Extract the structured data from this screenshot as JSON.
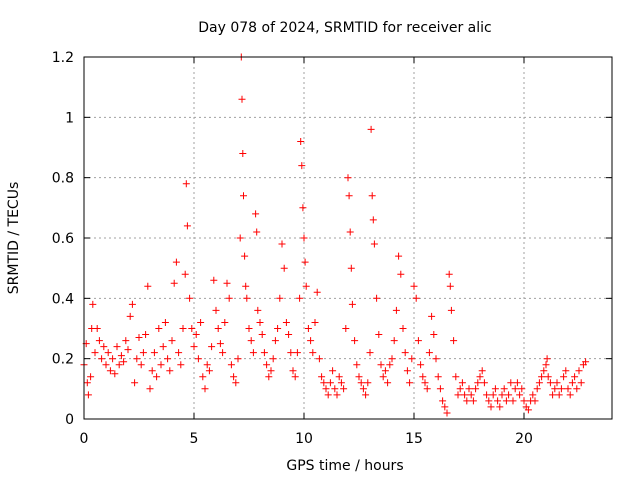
{
  "chart_data": {
    "type": "scatter",
    "title": "Day 078 of 2024, SRMTID for receiver alic",
    "xlabel": "GPS time / hours",
    "ylabel": "SRMTID / TECUs",
    "xlim": [
      0,
      24
    ],
    "ylim": [
      0,
      1.2
    ],
    "x_ticks": [
      0,
      5,
      10,
      15,
      20
    ],
    "x_tick_labels": [
      "0",
      "5",
      "10",
      "15",
      "20"
    ],
    "y_ticks": [
      0,
      0.2,
      0.4,
      0.6,
      0.8,
      1,
      1.2
    ],
    "y_tick_labels": [
      "0",
      "0.2",
      "0.4",
      "0.6",
      "0.8",
      "1",
      "1.2"
    ],
    "grid": true,
    "marker": "+",
    "color": "#ff0000",
    "series": [
      {
        "name": "SRMTID",
        "points": [
          [
            0.0,
            0.18
          ],
          [
            0.1,
            0.25
          ],
          [
            0.15,
            0.12
          ],
          [
            0.2,
            0.08
          ],
          [
            0.3,
            0.14
          ],
          [
            0.35,
            0.3
          ],
          [
            0.4,
            0.38
          ],
          [
            0.5,
            0.22
          ],
          [
            0.6,
            0.3
          ],
          [
            0.7,
            0.26
          ],
          [
            0.8,
            0.2
          ],
          [
            0.9,
            0.24
          ],
          [
            1.0,
            0.18
          ],
          [
            1.1,
            0.22
          ],
          [
            1.2,
            0.16
          ],
          [
            1.3,
            0.2
          ],
          [
            1.4,
            0.15
          ],
          [
            1.5,
            0.24
          ],
          [
            1.6,
            0.18
          ],
          [
            1.7,
            0.21
          ],
          [
            1.8,
            0.19
          ],
          [
            1.9,
            0.26
          ],
          [
            2.0,
            0.23
          ],
          [
            2.1,
            0.34
          ],
          [
            2.2,
            0.38
          ],
          [
            2.3,
            0.12
          ],
          [
            2.4,
            0.2
          ],
          [
            2.5,
            0.27
          ],
          [
            2.6,
            0.18
          ],
          [
            2.7,
            0.22
          ],
          [
            2.8,
            0.28
          ],
          [
            2.9,
            0.44
          ],
          [
            3.0,
            0.1
          ],
          [
            3.1,
            0.16
          ],
          [
            3.2,
            0.22
          ],
          [
            3.3,
            0.14
          ],
          [
            3.4,
            0.3
          ],
          [
            3.5,
            0.18
          ],
          [
            3.6,
            0.24
          ],
          [
            3.7,
            0.32
          ],
          [
            3.8,
            0.2
          ],
          [
            3.9,
            0.16
          ],
          [
            4.0,
            0.26
          ],
          [
            4.1,
            0.45
          ],
          [
            4.2,
            0.52
          ],
          [
            4.3,
            0.22
          ],
          [
            4.4,
            0.18
          ],
          [
            4.5,
            0.3
          ],
          [
            4.6,
            0.48
          ],
          [
            4.65,
            0.78
          ],
          [
            4.7,
            0.64
          ],
          [
            4.8,
            0.4
          ],
          [
            4.9,
            0.3
          ],
          [
            5.0,
            0.24
          ],
          [
            5.1,
            0.28
          ],
          [
            5.2,
            0.2
          ],
          [
            5.3,
            0.32
          ],
          [
            5.4,
            0.14
          ],
          [
            5.5,
            0.1
          ],
          [
            5.6,
            0.18
          ],
          [
            5.7,
            0.16
          ],
          [
            5.8,
            0.24
          ],
          [
            5.9,
            0.46
          ],
          [
            6.0,
            0.36
          ],
          [
            6.1,
            0.3
          ],
          [
            6.2,
            0.25
          ],
          [
            6.3,
            0.22
          ],
          [
            6.4,
            0.32
          ],
          [
            6.5,
            0.45
          ],
          [
            6.6,
            0.4
          ],
          [
            6.7,
            0.18
          ],
          [
            6.8,
            0.14
          ],
          [
            6.9,
            0.12
          ],
          [
            7.0,
            0.2
          ],
          [
            7.1,
            0.6
          ],
          [
            7.15,
            1.2
          ],
          [
            7.18,
            1.06
          ],
          [
            7.22,
            0.88
          ],
          [
            7.25,
            0.74
          ],
          [
            7.3,
            0.54
          ],
          [
            7.35,
            0.44
          ],
          [
            7.4,
            0.4
          ],
          [
            7.5,
            0.3
          ],
          [
            7.6,
            0.26
          ],
          [
            7.7,
            0.22
          ],
          [
            7.8,
            0.68
          ],
          [
            7.85,
            0.62
          ],
          [
            7.9,
            0.36
          ],
          [
            8.0,
            0.32
          ],
          [
            8.1,
            0.28
          ],
          [
            8.2,
            0.22
          ],
          [
            8.3,
            0.18
          ],
          [
            8.4,
            0.14
          ],
          [
            8.5,
            0.16
          ],
          [
            8.6,
            0.2
          ],
          [
            8.7,
            0.26
          ],
          [
            8.8,
            0.3
          ],
          [
            8.9,
            0.4
          ],
          [
            9.0,
            0.58
          ],
          [
            9.1,
            0.5
          ],
          [
            9.2,
            0.32
          ],
          [
            9.3,
            0.28
          ],
          [
            9.4,
            0.22
          ],
          [
            9.5,
            0.16
          ],
          [
            9.6,
            0.14
          ],
          [
            9.7,
            0.22
          ],
          [
            9.8,
            0.4
          ],
          [
            9.85,
            0.92
          ],
          [
            9.9,
            0.84
          ],
          [
            9.95,
            0.7
          ],
          [
            10.0,
            0.6
          ],
          [
            10.05,
            0.52
          ],
          [
            10.1,
            0.44
          ],
          [
            10.2,
            0.3
          ],
          [
            10.3,
            0.26
          ],
          [
            10.4,
            0.22
          ],
          [
            10.5,
            0.32
          ],
          [
            10.6,
            0.42
          ],
          [
            10.7,
            0.2
          ],
          [
            10.8,
            0.14
          ],
          [
            10.9,
            0.12
          ],
          [
            11.0,
            0.1
          ],
          [
            11.1,
            0.08
          ],
          [
            11.2,
            0.12
          ],
          [
            11.3,
            0.16
          ],
          [
            11.4,
            0.1
          ],
          [
            11.5,
            0.08
          ],
          [
            11.6,
            0.14
          ],
          [
            11.7,
            0.12
          ],
          [
            11.8,
            0.1
          ],
          [
            11.9,
            0.3
          ],
          [
            12.0,
            0.8
          ],
          [
            12.05,
            0.74
          ],
          [
            12.1,
            0.62
          ],
          [
            12.15,
            0.5
          ],
          [
            12.2,
            0.38
          ],
          [
            12.3,
            0.26
          ],
          [
            12.4,
            0.18
          ],
          [
            12.5,
            0.14
          ],
          [
            12.6,
            0.12
          ],
          [
            12.7,
            0.1
          ],
          [
            12.8,
            0.08
          ],
          [
            12.9,
            0.12
          ],
          [
            13.0,
            0.22
          ],
          [
            13.05,
            0.96
          ],
          [
            13.1,
            0.74
          ],
          [
            13.15,
            0.66
          ],
          [
            13.2,
            0.58
          ],
          [
            13.3,
            0.4
          ],
          [
            13.4,
            0.28
          ],
          [
            13.5,
            0.18
          ],
          [
            13.6,
            0.14
          ],
          [
            13.7,
            0.16
          ],
          [
            13.8,
            0.12
          ],
          [
            13.9,
            0.18
          ],
          [
            14.0,
            0.2
          ],
          [
            14.1,
            0.26
          ],
          [
            14.2,
            0.36
          ],
          [
            14.3,
            0.54
          ],
          [
            14.4,
            0.48
          ],
          [
            14.5,
            0.3
          ],
          [
            14.6,
            0.22
          ],
          [
            14.7,
            0.16
          ],
          [
            14.8,
            0.12
          ],
          [
            14.9,
            0.2
          ],
          [
            15.0,
            0.44
          ],
          [
            15.1,
            0.4
          ],
          [
            15.2,
            0.26
          ],
          [
            15.3,
            0.18
          ],
          [
            15.4,
            0.14
          ],
          [
            15.5,
            0.12
          ],
          [
            15.6,
            0.1
          ],
          [
            15.7,
            0.22
          ],
          [
            15.8,
            0.34
          ],
          [
            15.9,
            0.28
          ],
          [
            16.0,
            0.2
          ],
          [
            16.1,
            0.14
          ],
          [
            16.2,
            0.1
          ],
          [
            16.3,
            0.06
          ],
          [
            16.4,
            0.04
          ],
          [
            16.5,
            0.02
          ],
          [
            16.6,
            0.48
          ],
          [
            16.65,
            0.44
          ],
          [
            16.7,
            0.36
          ],
          [
            16.8,
            0.26
          ],
          [
            16.9,
            0.14
          ],
          [
            17.0,
            0.08
          ],
          [
            17.1,
            0.1
          ],
          [
            17.2,
            0.12
          ],
          [
            17.3,
            0.08
          ],
          [
            17.4,
            0.06
          ],
          [
            17.5,
            0.1
          ],
          [
            17.6,
            0.08
          ],
          [
            17.7,
            0.06
          ],
          [
            17.8,
            0.1
          ],
          [
            17.9,
            0.12
          ],
          [
            18.0,
            0.14
          ],
          [
            18.1,
            0.16
          ],
          [
            18.2,
            0.12
          ],
          [
            18.3,
            0.08
          ],
          [
            18.4,
            0.06
          ],
          [
            18.5,
            0.04
          ],
          [
            18.6,
            0.08
          ],
          [
            18.7,
            0.1
          ],
          [
            18.8,
            0.06
          ],
          [
            18.9,
            0.04
          ],
          [
            19.0,
            0.08
          ],
          [
            19.1,
            0.1
          ],
          [
            19.2,
            0.06
          ],
          [
            19.3,
            0.08
          ],
          [
            19.4,
            0.12
          ],
          [
            19.5,
            0.06
          ],
          [
            19.6,
            0.1
          ],
          [
            19.7,
            0.12
          ],
          [
            19.8,
            0.08
          ],
          [
            19.9,
            0.1
          ],
          [
            20.0,
            0.06
          ],
          [
            20.1,
            0.04
          ],
          [
            20.2,
            0.03
          ],
          [
            20.3,
            0.06
          ],
          [
            20.4,
            0.08
          ],
          [
            20.5,
            0.06
          ],
          [
            20.6,
            0.1
          ],
          [
            20.7,
            0.12
          ],
          [
            20.8,
            0.14
          ],
          [
            20.9,
            0.16
          ],
          [
            21.0,
            0.18
          ],
          [
            21.05,
            0.2
          ],
          [
            21.1,
            0.14
          ],
          [
            21.2,
            0.12
          ],
          [
            21.3,
            0.08
          ],
          [
            21.4,
            0.1
          ],
          [
            21.5,
            0.12
          ],
          [
            21.6,
            0.08
          ],
          [
            21.7,
            0.1
          ],
          [
            21.8,
            0.14
          ],
          [
            21.9,
            0.16
          ],
          [
            22.0,
            0.1
          ],
          [
            22.1,
            0.08
          ],
          [
            22.2,
            0.12
          ],
          [
            22.3,
            0.14
          ],
          [
            22.4,
            0.1
          ],
          [
            22.5,
            0.16
          ],
          [
            22.6,
            0.12
          ],
          [
            22.7,
            0.18
          ],
          [
            22.8,
            0.19
          ]
        ]
      }
    ]
  }
}
